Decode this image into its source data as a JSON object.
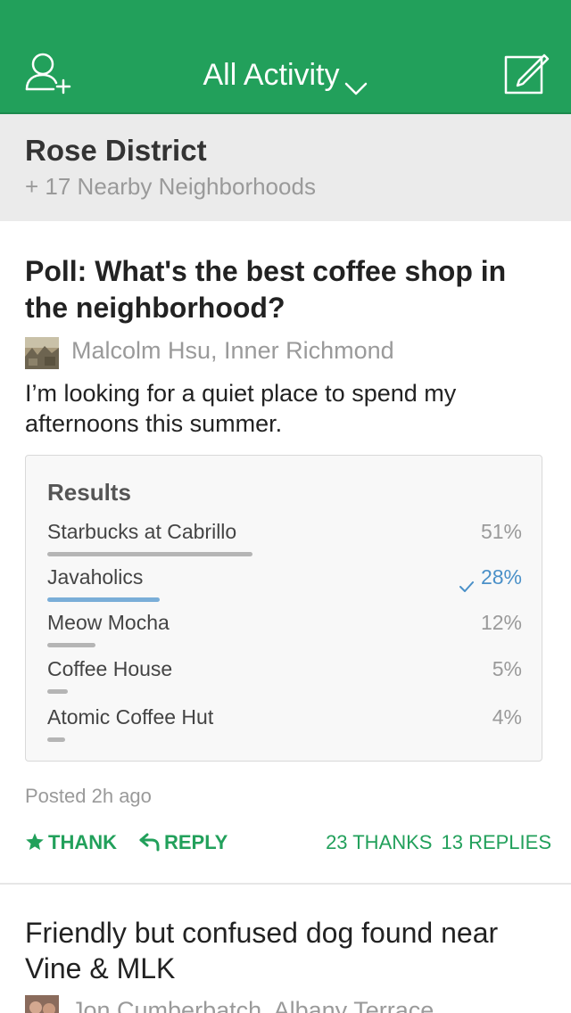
{
  "header": {
    "title": "All Activity",
    "icons": {
      "left": "add-user-icon",
      "right": "compose-icon",
      "title_caret": "chevron-down-icon"
    },
    "accent_color": "#22a05b"
  },
  "neighborhood": {
    "name": "Rose District",
    "nearby": "+ 17 Nearby Neighborhoods"
  },
  "post1": {
    "title": "Poll: What's the best coffee shop in the neighborhood?",
    "author": "Malcolm Hsu, Inner Richmond",
    "body": "I’m looking for a quiet place to spend my afternoons this summer.",
    "results": {
      "heading": "Results",
      "options": [
        {
          "label": "Starbucks at Cabrillo",
          "percent": "51%",
          "fraction": 0.51,
          "selected": false
        },
        {
          "label": "Javaholics",
          "percent": "28%",
          "fraction": 0.28,
          "selected": true
        },
        {
          "label": "Meow Mocha",
          "percent": "12%",
          "fraction": 0.12,
          "selected": false
        },
        {
          "label": "Coffee House",
          "percent": "5%",
          "fraction": 0.05,
          "selected": false
        },
        {
          "label": "Atomic Coffee Hut",
          "percent": "4%",
          "fraction": 0.04,
          "selected": false
        }
      ]
    },
    "posted": "Posted 2h ago",
    "actions": {
      "thank": "THANK",
      "reply": "REPLY",
      "thanks_count": "23 THANKS",
      "replies_count": "13 REPLIES"
    }
  },
  "post2": {
    "title": "Friendly but confused dog found near Vine & MLK",
    "author": "Jon Cumberbatch, Albany Terrace"
  }
}
